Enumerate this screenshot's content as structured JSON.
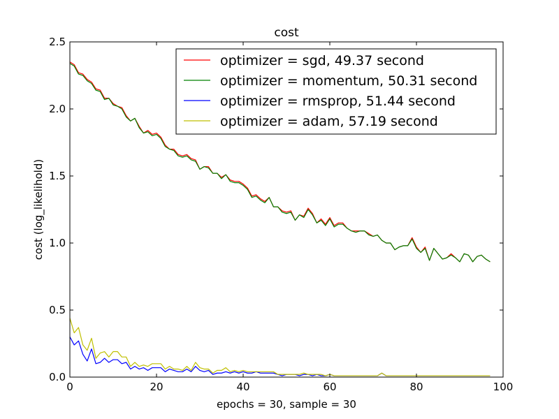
{
  "chart_data": {
    "type": "line",
    "title": "cost",
    "xlabel": "epochs = 30, sample = 30",
    "ylabel": "cost (log_likelihold)",
    "xlim": [
      0,
      100
    ],
    "ylim": [
      0.0,
      2.5
    ],
    "xticks": [
      0,
      20,
      40,
      60,
      80,
      100
    ],
    "yticks": [
      0.0,
      0.5,
      1.0,
      1.5,
      2.0,
      2.5
    ],
    "xtick_labels": [
      "0",
      "20",
      "40",
      "60",
      "80",
      "100"
    ],
    "ytick_labels": [
      "0.0",
      "0.5",
      "1.0",
      "1.5",
      "2.0",
      "2.5"
    ],
    "grid": false,
    "legend_position": "top-right",
    "series": [
      {
        "name": "optimizer = sgd, 49.37 second",
        "color": "#ff0000",
        "y": [
          2.35,
          2.33,
          2.27,
          2.26,
          2.22,
          2.2,
          2.15,
          2.14,
          2.08,
          2.08,
          2.04,
          2.02,
          2.01,
          1.95,
          1.91,
          1.93,
          1.87,
          1.82,
          1.84,
          1.81,
          1.82,
          1.79,
          1.73,
          1.7,
          1.7,
          1.66,
          1.65,
          1.66,
          1.63,
          1.62,
          1.55,
          1.57,
          1.57,
          1.52,
          1.52,
          1.49,
          1.51,
          1.47,
          1.46,
          1.46,
          1.44,
          1.41,
          1.35,
          1.36,
          1.33,
          1.31,
          1.34,
          1.27,
          1.27,
          1.24,
          1.23,
          1.24,
          1.17,
          1.21,
          1.2,
          1.26,
          1.22,
          1.15,
          1.18,
          1.14,
          1.19,
          1.13,
          1.15,
          1.15,
          1.11,
          1.09,
          1.09,
          1.09,
          1.09,
          1.07,
          1.05,
          1.06,
          1.02,
          1.0,
          1.0,
          0.95,
          0.97,
          0.98,
          0.98,
          1.04,
          0.97,
          0.93,
          0.97,
          0.87,
          0.96,
          0.92,
          0.88,
          0.89,
          0.92,
          0.89,
          0.86,
          0.92,
          0.91,
          0.86,
          0.9,
          0.91,
          0.88,
          0.86
        ]
      },
      {
        "name": "optimizer = momentum, 50.31 second",
        "color": "#008000",
        "y": [
          2.34,
          2.32,
          2.26,
          2.25,
          2.21,
          2.19,
          2.14,
          2.13,
          2.07,
          2.08,
          2.03,
          2.02,
          2.0,
          1.94,
          1.91,
          1.93,
          1.86,
          1.82,
          1.83,
          1.8,
          1.81,
          1.78,
          1.72,
          1.7,
          1.69,
          1.65,
          1.64,
          1.65,
          1.62,
          1.61,
          1.55,
          1.57,
          1.56,
          1.52,
          1.52,
          1.48,
          1.51,
          1.46,
          1.45,
          1.45,
          1.43,
          1.4,
          1.34,
          1.35,
          1.32,
          1.3,
          1.34,
          1.27,
          1.27,
          1.23,
          1.22,
          1.23,
          1.17,
          1.21,
          1.19,
          1.25,
          1.21,
          1.15,
          1.17,
          1.13,
          1.18,
          1.12,
          1.14,
          1.14,
          1.11,
          1.09,
          1.08,
          1.09,
          1.09,
          1.06,
          1.05,
          1.06,
          1.02,
          1.0,
          1.0,
          0.95,
          0.97,
          0.98,
          0.98,
          1.03,
          0.96,
          0.93,
          0.96,
          0.87,
          0.96,
          0.92,
          0.88,
          0.89,
          0.91,
          0.89,
          0.86,
          0.92,
          0.91,
          0.86,
          0.9,
          0.91,
          0.88,
          0.86
        ]
      },
      {
        "name": "optimizer = rmsprop, 51.44 second",
        "color": "#0000ff",
        "y": [
          0.3,
          0.24,
          0.27,
          0.17,
          0.12,
          0.21,
          0.1,
          0.11,
          0.14,
          0.11,
          0.13,
          0.13,
          0.1,
          0.11,
          0.06,
          0.08,
          0.06,
          0.07,
          0.05,
          0.07,
          0.07,
          0.07,
          0.04,
          0.06,
          0.05,
          0.04,
          0.04,
          0.06,
          0.04,
          0.08,
          0.05,
          0.04,
          0.05,
          0.02,
          0.03,
          0.03,
          0.04,
          0.03,
          0.04,
          0.03,
          0.04,
          0.03,
          0.03,
          0.04,
          0.03,
          0.03,
          0.03,
          0.03,
          0.02,
          0.01,
          0.02,
          0.02,
          0.02,
          0.01,
          0.02,
          0.02,
          0.01,
          0.02,
          0.01,
          0.01,
          0.02,
          0.01,
          0.01,
          0.01,
          0.01,
          0.01,
          0.01,
          0.01,
          0.01,
          0.01,
          0.01,
          0.01,
          0.03,
          0.01,
          0.01,
          0.01,
          0.01,
          0.01,
          0.01,
          0.01,
          0.01,
          0.01,
          0.01,
          0.01,
          0.01,
          0.01,
          0.01,
          0.01,
          0.01,
          0.01,
          0.01,
          0.01,
          0.01,
          0.01,
          0.01,
          0.01,
          0.01,
          0.01
        ]
      },
      {
        "name": "optimizer = adam, 57.19 second",
        "color": "#bfbf00",
        "y": [
          0.44,
          0.33,
          0.37,
          0.24,
          0.2,
          0.29,
          0.14,
          0.18,
          0.19,
          0.15,
          0.19,
          0.19,
          0.15,
          0.15,
          0.08,
          0.11,
          0.08,
          0.09,
          0.08,
          0.1,
          0.1,
          0.1,
          0.06,
          0.08,
          0.06,
          0.06,
          0.05,
          0.08,
          0.05,
          0.11,
          0.07,
          0.06,
          0.06,
          0.03,
          0.05,
          0.05,
          0.07,
          0.04,
          0.05,
          0.04,
          0.05,
          0.04,
          0.04,
          0.04,
          0.04,
          0.04,
          0.04,
          0.04,
          0.02,
          0.02,
          0.02,
          0.02,
          0.02,
          0.02,
          0.03,
          0.02,
          0.02,
          0.02,
          0.02,
          0.01,
          0.02,
          0.01,
          0.01,
          0.01,
          0.01,
          0.01,
          0.01,
          0.01,
          0.01,
          0.01,
          0.01,
          0.01,
          0.03,
          0.01,
          0.01,
          0.01,
          0.01,
          0.01,
          0.01,
          0.01,
          0.01,
          0.01,
          0.01,
          0.01,
          0.01,
          0.01,
          0.01,
          0.01,
          0.01,
          0.01,
          0.01,
          0.01,
          0.01,
          0.01,
          0.01,
          0.01,
          0.01,
          0.01
        ]
      }
    ]
  }
}
